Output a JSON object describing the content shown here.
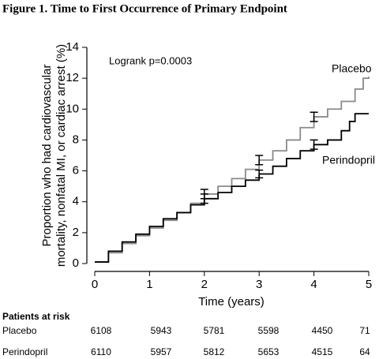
{
  "chart_data": {
    "type": "step",
    "title": "Figure 1.  Time to First Occurrence of Primary Endpoint",
    "annotation": "Logrank p=0.0003",
    "x_label": "Time (years)",
    "y_label": [
      "Proportion who had cardiovascular",
      "mortality, nonfatal MI, or cardiac arrest (%)"
    ],
    "xlim": [
      0,
      5
    ],
    "xticks": [
      0,
      1,
      2,
      3,
      4,
      5
    ],
    "ylim": [
      0,
      14
    ],
    "yticks": [
      0,
      2,
      4,
      6,
      8,
      10,
      12,
      14
    ],
    "series": [
      {
        "name": "Placebo",
        "color": "#8a8a8a",
        "x": [
          0,
          0.25,
          0.5,
          0.75,
          1,
          1.25,
          1.5,
          1.75,
          2,
          2.25,
          2.5,
          2.75,
          3,
          3.25,
          3.5,
          3.75,
          4,
          4.25,
          4.5,
          4.75,
          4.9,
          5
        ],
        "values": [
          0.1,
          0.7,
          1.3,
          1.8,
          2.3,
          2.8,
          3.3,
          3.9,
          4.5,
          5.0,
          5.5,
          6.1,
          6.7,
          7.3,
          8.0,
          8.8,
          9.5,
          10.0,
          10.5,
          11.3,
          12.0,
          12.1
        ],
        "error_bars": {
          "x": [
            2,
            3,
            4
          ],
          "values": [
            4.5,
            6.7,
            9.5
          ],
          "errors": [
            0.3,
            0.3,
            0.3
          ]
        }
      },
      {
        "name": "Perindopril",
        "color": "#000000",
        "x": [
          0,
          0.25,
          0.5,
          0.75,
          1,
          1.25,
          1.5,
          1.75,
          2,
          2.25,
          2.5,
          2.75,
          3,
          3.25,
          3.5,
          3.75,
          4,
          4.25,
          4.5,
          4.65,
          4.75,
          5
        ],
        "values": [
          0.1,
          0.8,
          1.4,
          1.9,
          2.4,
          2.9,
          3.3,
          3.8,
          4.2,
          4.6,
          5.0,
          5.4,
          5.8,
          6.3,
          6.8,
          7.3,
          7.7,
          8.0,
          8.6,
          9.2,
          9.7,
          9.7
        ],
        "error_bars": {
          "x": [
            2,
            3,
            4
          ],
          "values": [
            4.2,
            5.8,
            7.7
          ],
          "errors": [
            0.3,
            0.25,
            0.3
          ]
        }
      }
    ],
    "risk_table": {
      "title": "Patients at risk",
      "rows": [
        {
          "name": "Placebo",
          "values": [
            6108,
            5943,
            5781,
            5598,
            4450,
            71
          ]
        },
        {
          "name": "Perindopril",
          "values": [
            6110,
            5957,
            5812,
            5653,
            4515,
            64
          ]
        }
      ]
    }
  }
}
